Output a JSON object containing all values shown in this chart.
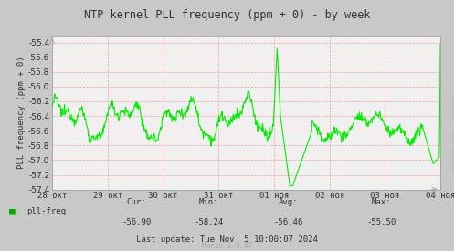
{
  "title": "NTP kernel PLL frequency (ppm + 0) - by week",
  "ylabel": "PLL frequency (ppm + 0)",
  "ylim": [
    -57.4,
    -55.3
  ],
  "yticks": [
    -57.4,
    -57.2,
    -57.0,
    -56.8,
    -56.6,
    -56.4,
    -56.2,
    -56.0,
    -55.8,
    -55.6,
    -55.4
  ],
  "bg_color": "#c8c8c8",
  "plot_bg_color": "#f0f0f0",
  "line_color": "#00ee00",
  "grid_h_color": "#ff9999",
  "grid_v_color": "#ff9999",
  "text_color": "#555555",
  "legend_label": "pll-freq",
  "legend_color": "#00aa00",
  "cur": "-56.90",
  "min": "-58.24",
  "avg": "-56.46",
  "max": "-55.50",
  "last_update": "Last update: Tue Nov  5 10:00:07 2024",
  "munin_version": "Munin 2.0.67",
  "xtick_labels": [
    "28 окт",
    "29 окт",
    "30 окт",
    "31 окт",
    "01 ноя",
    "02 ноя",
    "03 ноя",
    "04 ноя"
  ],
  "watermark": "RRDTOOL / TOBI OETIKER"
}
